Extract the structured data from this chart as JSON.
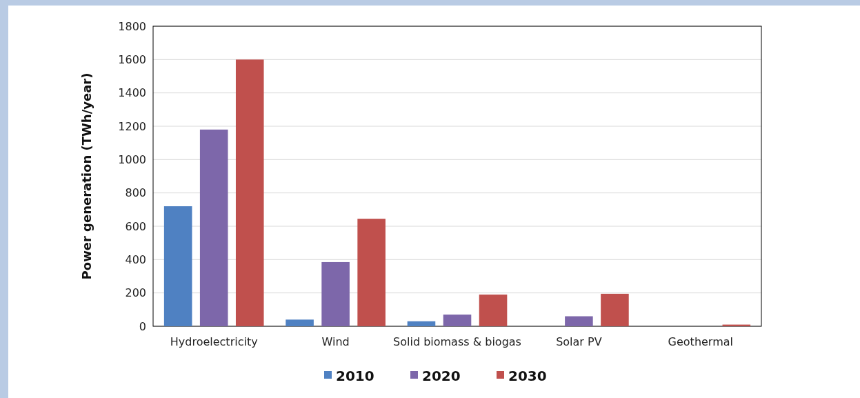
{
  "chart_data": {
    "type": "bar",
    "ylabel": "Power generation (TWh/year)",
    "categories": [
      "Hydroelectricity",
      "Wind",
      "Solid biomass & biogas",
      "Solar PV",
      "Geothermal"
    ],
    "series": [
      {
        "name": "2010",
        "color": "#4f81c2",
        "values": [
          720,
          40,
          30,
          0,
          0
        ]
      },
      {
        "name": "2020",
        "color": "#7d67aa",
        "values": [
          1180,
          385,
          70,
          60,
          0
        ]
      },
      {
        "name": "2030",
        "color": "#c0504d",
        "values": [
          1600,
          645,
          190,
          195,
          10
        ]
      }
    ],
    "ylim": [
      0,
      1800
    ],
    "yticks": [
      0,
      200,
      400,
      600,
      800,
      1000,
      1200,
      1400,
      1600,
      1800
    ],
    "grid": "y",
    "legend": "bottom"
  }
}
